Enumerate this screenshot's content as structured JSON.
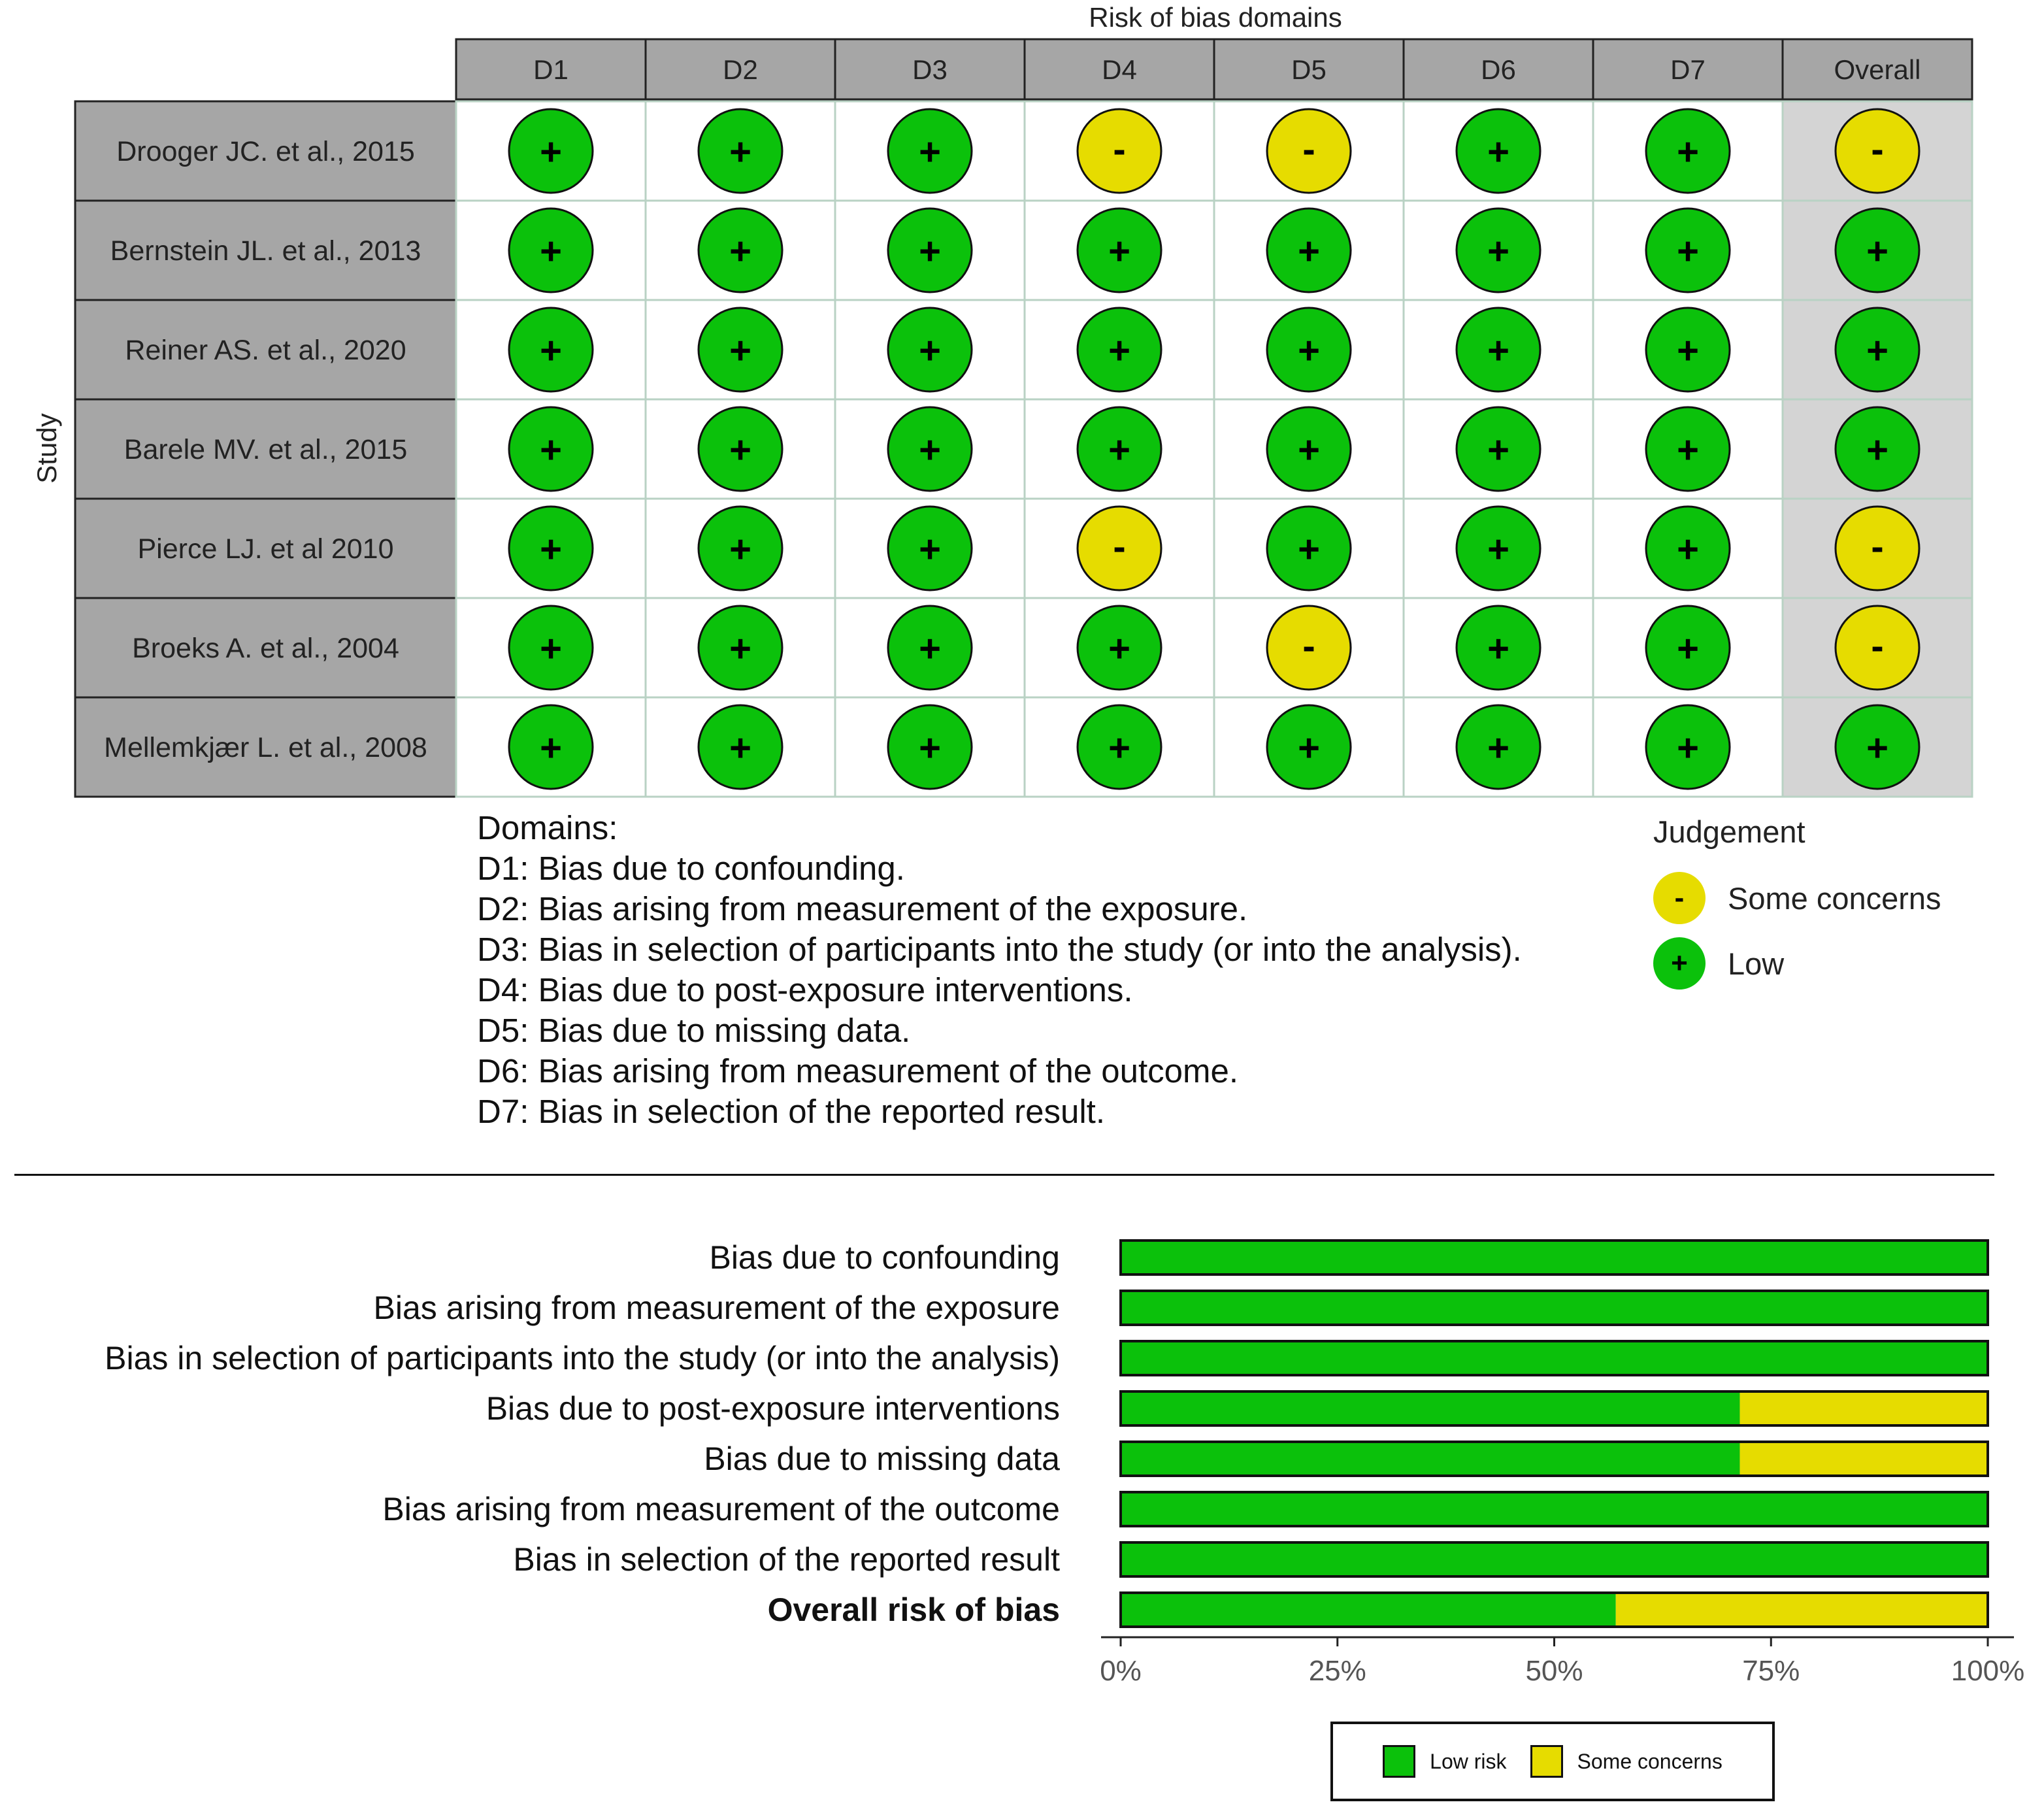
{
  "chart_data": [
    {
      "type": "table",
      "title": "Risk of bias domains",
      "ylabel": "Study",
      "columns": [
        "D1",
        "D2",
        "D3",
        "D4",
        "D5",
        "D6",
        "D7",
        "Overall"
      ],
      "rows": [
        {
          "study": "Drooger JC. et al., 2015",
          "judgements": [
            "+",
            "+",
            "+",
            "-",
            "-",
            "+",
            "+",
            "-"
          ]
        },
        {
          "study": "Bernstein JL. et al., 2013",
          "judgements": [
            "+",
            "+",
            "+",
            "+",
            "+",
            "+",
            "+",
            "+"
          ]
        },
        {
          "study": "Reiner AS. et al., 2020",
          "judgements": [
            "+",
            "+",
            "+",
            "+",
            "+",
            "+",
            "+",
            "+"
          ]
        },
        {
          "study": "Barele MV. et al., 2015",
          "judgements": [
            "+",
            "+",
            "+",
            "+",
            "+",
            "+",
            "+",
            "+"
          ]
        },
        {
          "study": "Pierce LJ. et al 2010",
          "judgements": [
            "+",
            "+",
            "+",
            "-",
            "+",
            "+",
            "+",
            "-"
          ]
        },
        {
          "study": "Broeks A. et al., 2004",
          "judgements": [
            "+",
            "+",
            "+",
            "+",
            "-",
            "+",
            "+",
            "-"
          ]
        },
        {
          "study": "Mellemkjær L. et al., 2008",
          "judgements": [
            "+",
            "+",
            "+",
            "+",
            "+",
            "+",
            "+",
            "+"
          ]
        }
      ],
      "domains_title": "Domains:",
      "domains": [
        "D1: Bias due to confounding.",
        "D2: Bias arising from measurement of the exposure.",
        "D3: Bias in selection of participants into the study (or into the analysis).",
        "D4: Bias due to post-exposure interventions.",
        "D5: Bias due to missing data.",
        "D6: Bias arising from measurement of the outcome.",
        "D7: Bias in selection of the reported result."
      ],
      "legend": {
        "title": "Judgement",
        "items": [
          {
            "symbol": "-",
            "label": "Some concerns",
            "color": "#e6dc00"
          },
          {
            "symbol": "+",
            "label": "Low",
            "color": "#0bc10b"
          }
        ]
      }
    },
    {
      "type": "bar",
      "orientation": "horizontal",
      "stacked": true,
      "categories": [
        "Bias due to confounding",
        "Bias arising from measurement of the exposure",
        "Bias in selection of participants into the study (or into the analysis)",
        "Bias due to post-exposure interventions",
        "Bias due to missing data",
        "Bias arising from measurement of the outcome",
        "Bias in selection of the reported result",
        "Overall risk of bias"
      ],
      "bold_category_index": 7,
      "series": [
        {
          "name": "Low risk",
          "color": "#0bc10b",
          "values": [
            100,
            100,
            100,
            71.4,
            71.4,
            100,
            100,
            57.1
          ]
        },
        {
          "name": "Some concerns",
          "color": "#e6dc00",
          "values": [
            0,
            0,
            0,
            28.6,
            28.6,
            0,
            0,
            42.9
          ]
        }
      ],
      "xlim": [
        0,
        100
      ],
      "xticks": [
        "0%",
        "25%",
        "50%",
        "75%",
        "100%"
      ],
      "legend_position": "bottom"
    }
  ],
  "colors": {
    "low": "#0bc10b",
    "some_concerns": "#e6dc00",
    "header_bg": "#a6a6a6",
    "study_bg": "#a6a6a6",
    "overall_bg": "#d4d4d4"
  }
}
